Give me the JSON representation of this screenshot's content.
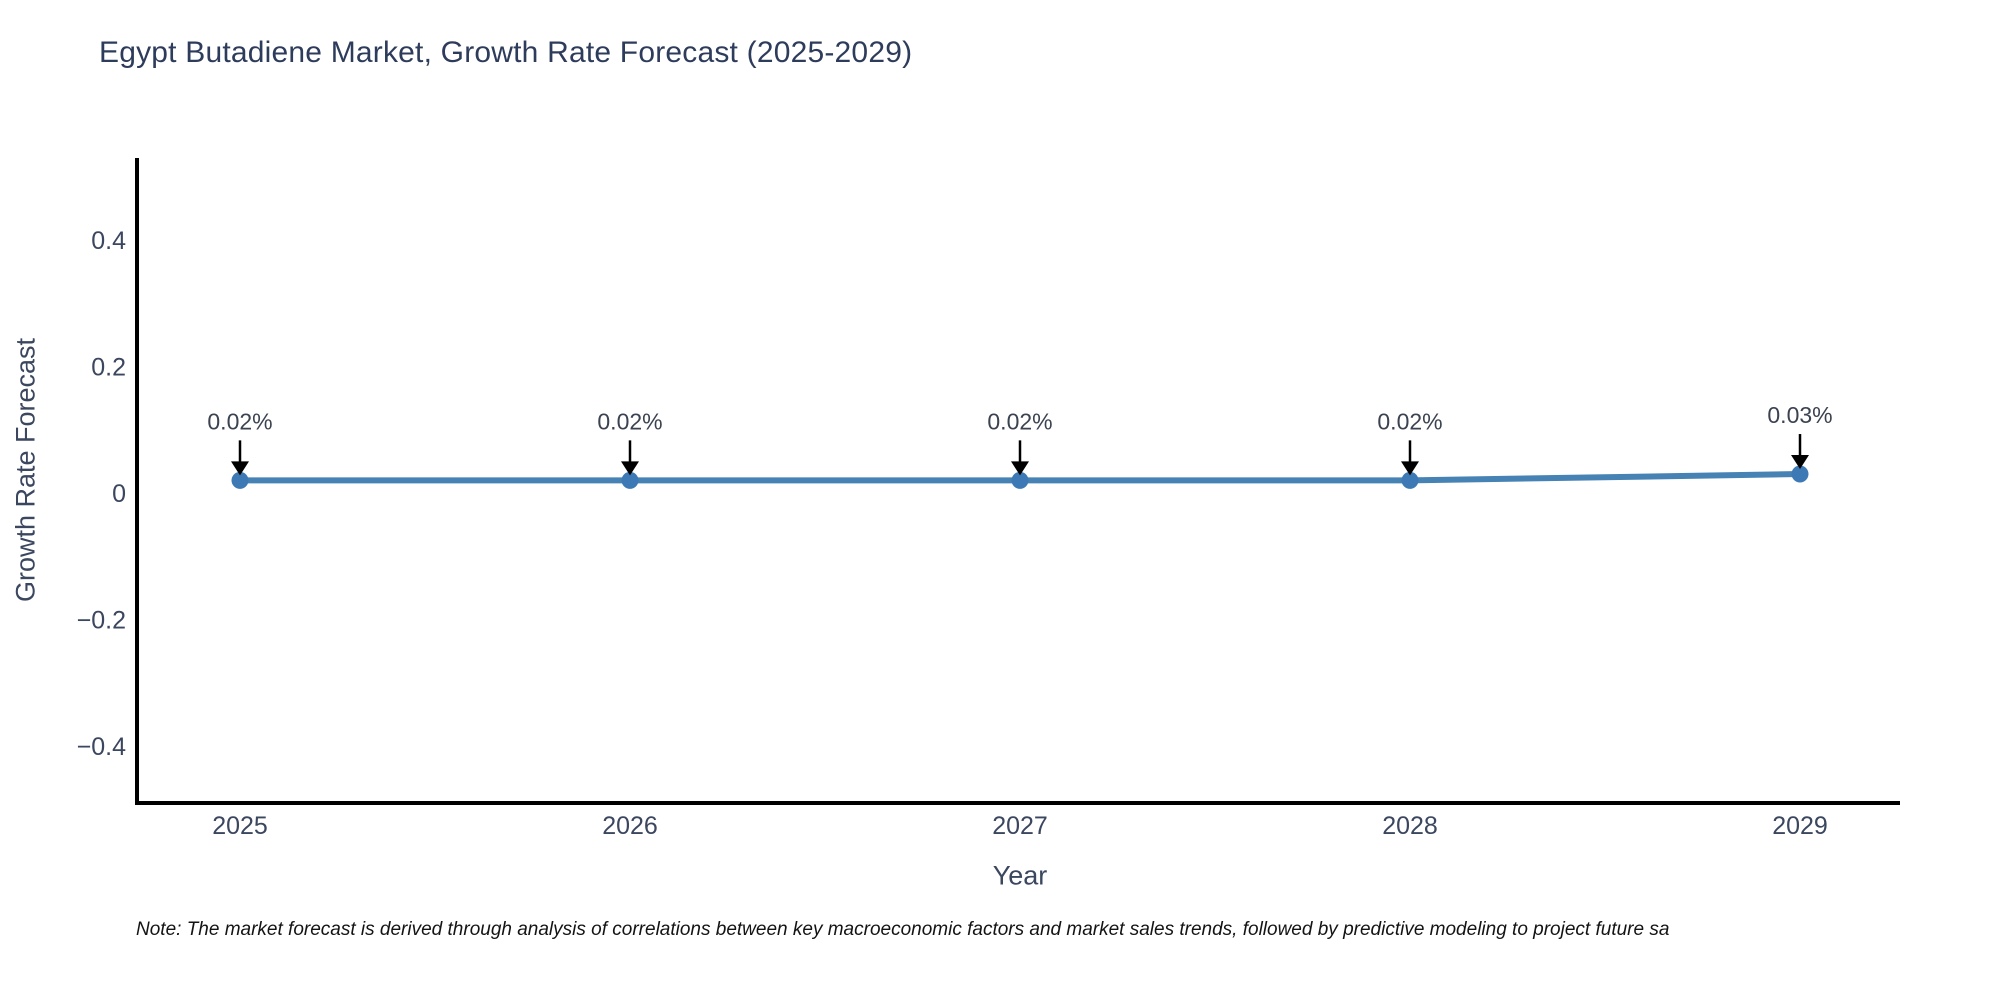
{
  "chart_data": {
    "type": "line",
    "title": "Egypt Butadiene Market, Growth Rate Forecast (2025-2029)",
    "xlabel": "Year",
    "ylabel": "Growth Rate Forecast",
    "categories": [
      2025,
      2026,
      2027,
      2028,
      2029
    ],
    "values": [
      0.02,
      0.02,
      0.02,
      0.02,
      0.03
    ],
    "point_labels": [
      "0.02%",
      "0.02%",
      "0.02%",
      "0.02%",
      "0.03%"
    ],
    "yticks": [
      0.4,
      0.2,
      0,
      -0.2,
      -0.4
    ],
    "ytick_labels": [
      "0.4",
      "0.2",
      "0",
      "−0.2",
      "−0.4"
    ],
    "xlim": [
      2024.74,
      2029.26
    ],
    "ylim": [
      -0.5,
      0.53
    ],
    "grid": false,
    "legend": null,
    "line_color": "#4682b4",
    "marker_color": "#3d7ab5",
    "spine_color": "#000000",
    "annotation_color": "#3b4250",
    "annotation_arrow_color": "#000000",
    "tick_label_color": "#3b465f"
  },
  "note": {
    "text": "Note: The market forecast is derived through analysis of correlations between key macroeconomic factors and market sales trends, followed by predictive modeling to project future sa"
  }
}
